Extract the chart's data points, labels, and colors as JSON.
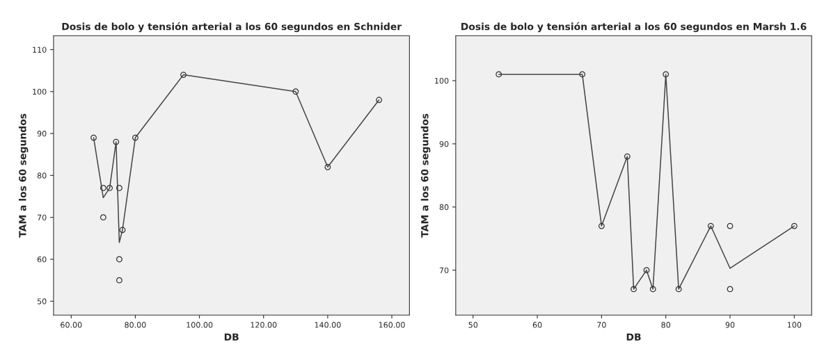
{
  "chart_data": [
    {
      "type": "scatter",
      "title": "Dosis de bolo y tensión arterial a los 60 segundos en Schnider",
      "xlabel": "DB",
      "ylabel": "TAM a los 60 segundos",
      "series": [
        {
          "color": "#333333",
          "marker": "circle",
          "x": [
            67,
            70,
            70,
            72,
            74,
            75,
            75,
            75,
            76,
            80,
            95,
            130,
            140,
            156
          ],
          "values": [
            89,
            77,
            70,
            77,
            88,
            77,
            60,
            55,
            67,
            89,
            104,
            100,
            82,
            98
          ]
        },
        {
          "type": "line",
          "color": "#444444",
          "marker": "none",
          "x": [
            67,
            70,
            72,
            74,
            75,
            76,
            80,
            95,
            130,
            140,
            156
          ],
          "values": [
            89,
            74.7,
            77,
            88,
            64,
            67,
            89,
            104,
            100,
            82,
            98
          ]
        }
      ],
      "xlim": [
        54.5,
        165.5
      ],
      "xticks": [
        {
          "value": 60,
          "label": "60.00"
        },
        {
          "value": 80,
          "label": "80.00"
        },
        {
          "value": 100,
          "label": "100.00"
        },
        {
          "value": 120,
          "label": "120.00"
        },
        {
          "value": 140,
          "label": "140.00"
        },
        {
          "value": 160,
          "label": "160.00"
        }
      ],
      "ylim": [
        46.7,
        113.3
      ],
      "yticks": [
        50,
        60,
        70,
        80,
        90,
        100,
        110
      ],
      "grid": false,
      "legend": false
    },
    {
      "type": "scatter",
      "title": "Dosis de bolo y tensión arterial a los 60 segundos en Marsh 1.6",
      "xlabel": "DB",
      "ylabel": "TAM a los 60 segundos",
      "series": [
        {
          "color": "#333333",
          "marker": "circle",
          "x": [
            54,
            67,
            70,
            74,
            75,
            77,
            78,
            80,
            82,
            87,
            90,
            90,
            100
          ],
          "values": [
            101,
            101,
            77,
            88,
            67,
            70,
            67,
            101,
            67,
            77,
            77,
            67,
            77
          ]
        },
        {
          "type": "line",
          "color": "#444444",
          "marker": "none",
          "x": [
            54,
            67,
            70,
            74,
            75,
            77,
            78,
            80,
            82,
            87,
            90,
            100
          ],
          "values": [
            101,
            101,
            77,
            88,
            67,
            70,
            67,
            101,
            67,
            77,
            70.3,
            77
          ]
        }
      ],
      "xlim": [
        47.3,
        102.7
      ],
      "xticks": [
        50,
        60,
        70,
        80,
        90,
        100
      ],
      "ylim": [
        62.9,
        107.1
      ],
      "yticks": [
        70,
        80,
        90,
        100
      ],
      "grid": false,
      "legend": false
    }
  ]
}
